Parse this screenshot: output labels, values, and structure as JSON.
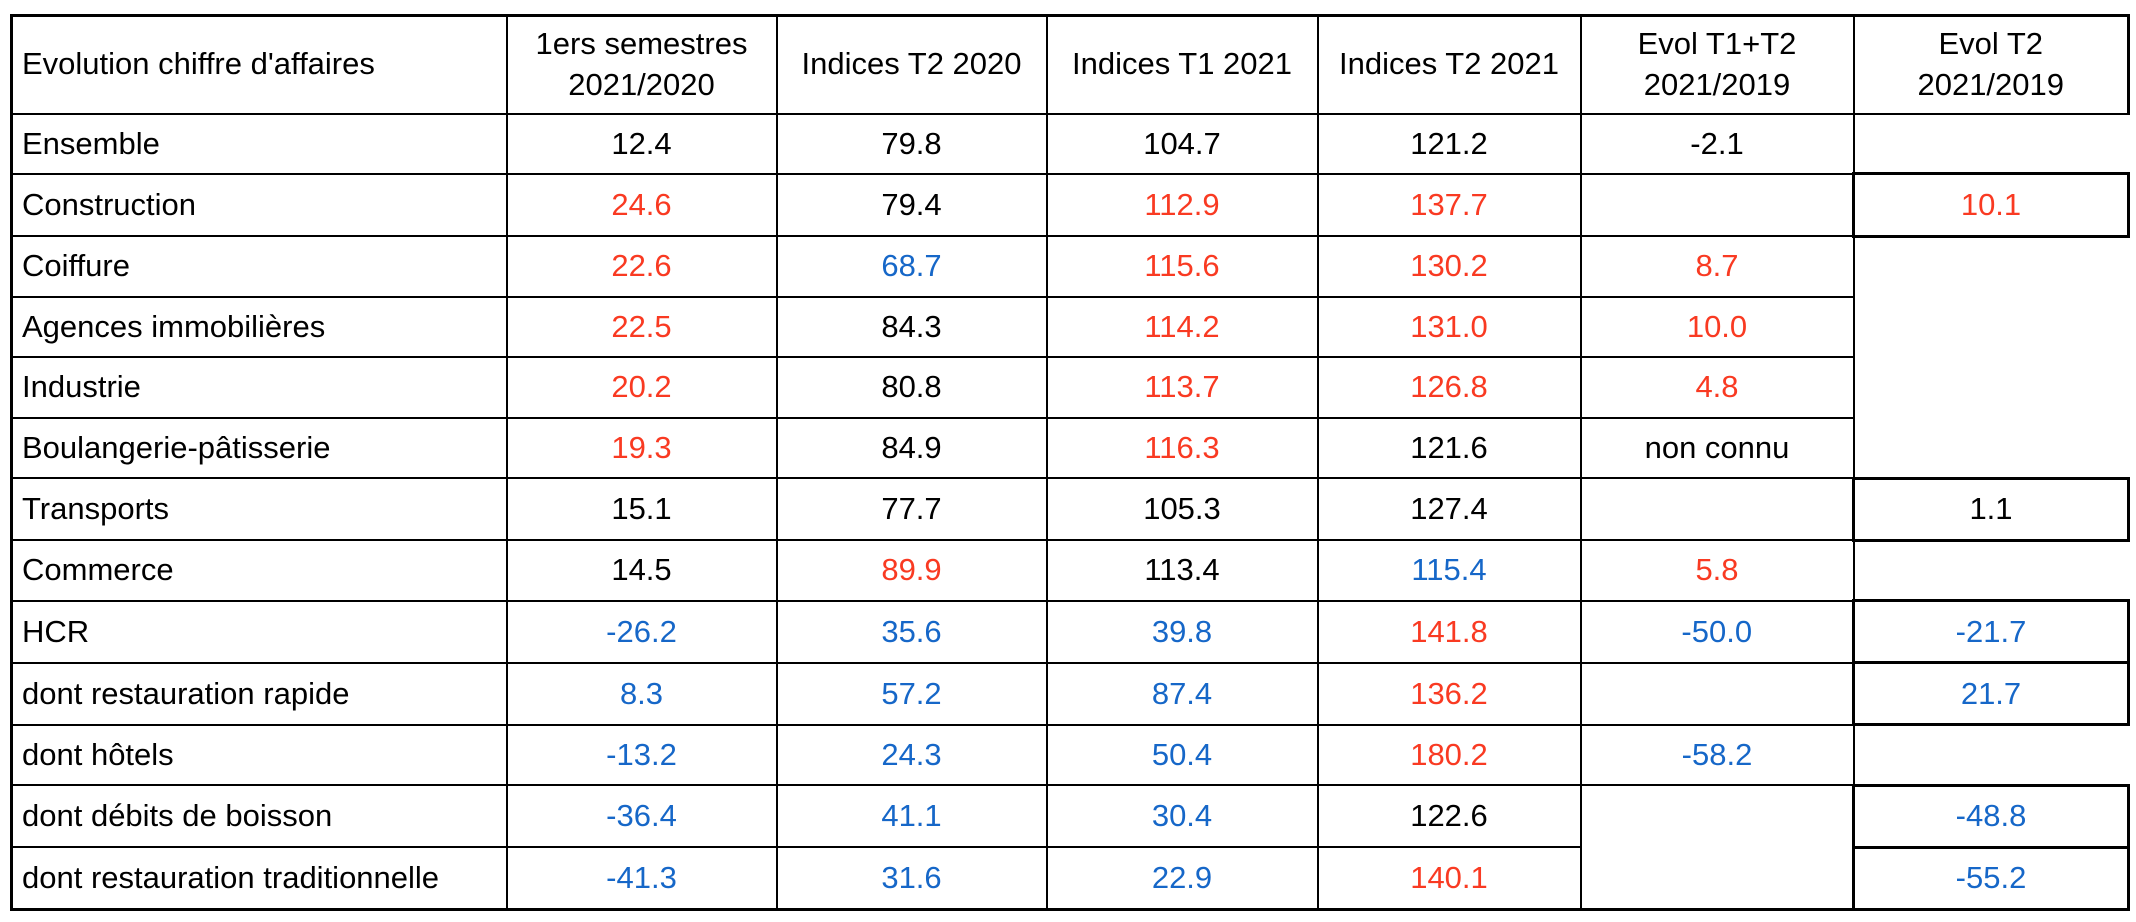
{
  "colors": {
    "k": "#000000",
    "r": "#f93a22",
    "b": "#1667c8"
  },
  "chart_data": {
    "type": "table",
    "title": "Evolution chiffre d'affaires",
    "columns": [
      "Evolution chiffre d'affaires",
      "1ers semestres\n2021/2020",
      "Indices T2 2020",
      "Indices T1 2021",
      "Indices T2 2021",
      "Evol T1+T2\n2021/2019",
      "Evol T2\n2021/2019"
    ],
    "rows": [
      [
        "Ensemble",
        "12.4",
        "79.8",
        "104.7",
        "121.2",
        "-2.1",
        ""
      ],
      [
        "Construction",
        "24.6",
        "79.4",
        "112.9",
        "137.7",
        "",
        "10.1"
      ],
      [
        "Coiffure",
        "22.6",
        "68.7",
        "115.6",
        "130.2",
        "8.7",
        ""
      ],
      [
        "Agences immobilières",
        "22.5",
        "84.3",
        "114.2",
        "131.0",
        "10.0",
        ""
      ],
      [
        "Industrie",
        "20.2",
        "80.8",
        "113.7",
        "126.8",
        "4.8",
        ""
      ],
      [
        "Boulangerie-pâtisserie",
        "19.3",
        "84.9",
        "116.3",
        "121.6",
        "non connu",
        ""
      ],
      [
        "Transports",
        "15.1",
        "77.7",
        "105.3",
        "127.4",
        "",
        "1.1"
      ],
      [
        "Commerce",
        "14.5",
        "89.9",
        "113.4",
        "115.4",
        "5.8",
        ""
      ],
      [
        "HCR",
        "-26.2",
        "35.6",
        "39.8",
        "141.8",
        "-50.0",
        "-21.7"
      ],
      [
        "dont restauration rapide",
        "8.3",
        "57.2",
        "87.4",
        "136.2",
        "",
        "21.7"
      ],
      [
        "dont hôtels",
        "-13.2",
        "24.3",
        "50.4",
        "180.2",
        "-58.2",
        ""
      ],
      [
        "dont débits de boisson",
        "-36.4",
        "41.1",
        "30.4",
        "122.6",
        "",
        "-48.8"
      ],
      [
        "dont restauration traditionnelle",
        "-41.3",
        "31.6",
        "22.9",
        "140.1",
        "",
        "-55.2"
      ]
    ],
    "cell_colors": [
      [
        "k",
        "k",
        "k",
        "k",
        "k",
        "k"
      ],
      [
        "r",
        "k",
        "r",
        "r",
        "k",
        "r"
      ],
      [
        "r",
        "b",
        "r",
        "r",
        "r",
        "k"
      ],
      [
        "r",
        "k",
        "r",
        "r",
        "r",
        "k"
      ],
      [
        "r",
        "k",
        "r",
        "r",
        "r",
        "k"
      ],
      [
        "r",
        "k",
        "r",
        "k",
        "k",
        "k"
      ],
      [
        "k",
        "k",
        "k",
        "k",
        "k",
        "k"
      ],
      [
        "k",
        "r",
        "k",
        "b",
        "r",
        "k"
      ],
      [
        "b",
        "b",
        "b",
        "r",
        "b",
        "b"
      ],
      [
        "b",
        "b",
        "b",
        "r",
        "k",
        "b"
      ],
      [
        "b",
        "b",
        "b",
        "r",
        "b",
        "k"
      ],
      [
        "b",
        "b",
        "b",
        "k",
        "k",
        "b"
      ],
      [
        "b",
        "b",
        "b",
        "r",
        "k",
        "b"
      ]
    ],
    "legend": "",
    "xlabel": "",
    "ylabel": ""
  },
  "structure": {
    "col6": [
      "cell",
      "cell",
      "cell",
      "cell",
      "cell",
      "cell",
      "cell",
      "cell",
      "cell",
      "cell",
      "cell",
      "merge2",
      "skip"
    ],
    "col7": [
      "open",
      "box",
      "open4",
      "skip",
      "skip",
      "skip",
      "box",
      "open",
      "box",
      "box",
      "open",
      "box",
      "box"
    ]
  }
}
